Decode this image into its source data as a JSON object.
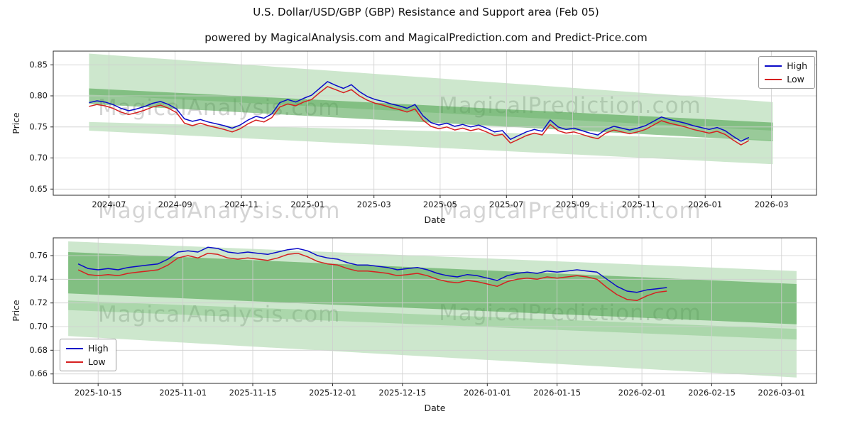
{
  "title": "U.S. Dollar/USD/GBP (GBP) Resistance and Support area (Feb 05)",
  "subtitle": "powered by MagicalAnalysis.com and MagicalPrediction.com and Predict-Price.com",
  "watermarks": {
    "analysis": "MagicalAnalysis.com",
    "prediction": "MagicalPrediction.com"
  },
  "legend": {
    "high": "High",
    "low": "Low"
  },
  "colors": {
    "high": "#0a0ac8",
    "low": "#d62020",
    "band_light": "rgba(99,180,99,0.32)",
    "band_dark": "rgba(70,158,70,0.55)",
    "grid": "#cfcfcf",
    "spine": "#2b2b2b"
  },
  "chart_data": [
    {
      "type": "line",
      "title": "U.S. Dollar/USD/GBP (GBP) Resistance and Support area (Feb 05)",
      "xlabel": "Date",
      "ylabel": "Price",
      "xlim": [
        2024.36,
        2026.28
      ],
      "ylim": [
        0.64,
        0.872
      ],
      "grid": true,
      "legend_position": "upper right",
      "xticks": [
        {
          "v": 2024.5,
          "label": "2024-07"
        },
        {
          "v": 2024.6667,
          "label": "2024-09"
        },
        {
          "v": 2024.8333,
          "label": "2024-11"
        },
        {
          "v": 2025.0,
          "label": "2025-01"
        },
        {
          "v": 2025.1667,
          "label": "2025-03"
        },
        {
          "v": 2025.3333,
          "label": "2025-05"
        },
        {
          "v": 2025.5,
          "label": "2025-07"
        },
        {
          "v": 2025.6667,
          "label": "2025-09"
        },
        {
          "v": 2025.8333,
          "label": "2025-11"
        },
        {
          "v": 2026.0,
          "label": "2026-01"
        },
        {
          "v": 2026.1667,
          "label": "2026-03"
        }
      ],
      "yticks": [
        {
          "v": 0.65,
          "label": "0.65"
        },
        {
          "v": 0.7,
          "label": "0.70"
        },
        {
          "v": 0.75,
          "label": "0.75"
        },
        {
          "v": 0.8,
          "label": "0.80"
        },
        {
          "v": 0.85,
          "label": "0.85"
        }
      ],
      "x_start": 2024.45,
      "x_step": 0.02,
      "series": [
        {
          "name": "High",
          "color": "#0a0ac8",
          "y": [
            0.789,
            0.792,
            0.79,
            0.786,
            0.78,
            0.776,
            0.779,
            0.783,
            0.788,
            0.791,
            0.786,
            0.779,
            0.763,
            0.759,
            0.762,
            0.758,
            0.755,
            0.752,
            0.748,
            0.753,
            0.761,
            0.767,
            0.764,
            0.771,
            0.789,
            0.794,
            0.79,
            0.796,
            0.801,
            0.812,
            0.823,
            0.817,
            0.812,
            0.818,
            0.807,
            0.799,
            0.794,
            0.791,
            0.787,
            0.784,
            0.78,
            0.786,
            0.768,
            0.757,
            0.753,
            0.756,
            0.751,
            0.754,
            0.75,
            0.753,
            0.748,
            0.742,
            0.744,
            0.73,
            0.736,
            0.742,
            0.746,
            0.743,
            0.761,
            0.75,
            0.746,
            0.748,
            0.744,
            0.74,
            0.737,
            0.746,
            0.751,
            0.748,
            0.745,
            0.748,
            0.752,
            0.759,
            0.766,
            0.762,
            0.759,
            0.756,
            0.752,
            0.749,
            0.746,
            0.749,
            0.744,
            0.735,
            0.727,
            0.733
          ]
        },
        {
          "name": "Low",
          "color": "#d62020",
          "y": [
            0.783,
            0.786,
            0.784,
            0.78,
            0.774,
            0.77,
            0.773,
            0.777,
            0.782,
            0.785,
            0.78,
            0.773,
            0.756,
            0.752,
            0.756,
            0.752,
            0.749,
            0.746,
            0.742,
            0.747,
            0.755,
            0.761,
            0.758,
            0.765,
            0.782,
            0.787,
            0.784,
            0.79,
            0.794,
            0.805,
            0.815,
            0.81,
            0.805,
            0.81,
            0.8,
            0.793,
            0.788,
            0.785,
            0.781,
            0.778,
            0.774,
            0.779,
            0.761,
            0.751,
            0.747,
            0.75,
            0.745,
            0.748,
            0.744,
            0.747,
            0.742,
            0.736,
            0.738,
            0.724,
            0.73,
            0.736,
            0.74,
            0.737,
            0.754,
            0.744,
            0.74,
            0.742,
            0.738,
            0.734,
            0.731,
            0.74,
            0.745,
            0.742,
            0.739,
            0.742,
            0.746,
            0.753,
            0.76,
            0.756,
            0.753,
            0.75,
            0.746,
            0.743,
            0.74,
            0.743,
            0.738,
            0.729,
            0.721,
            0.728
          ]
        }
      ],
      "bands": [
        {
          "x": [
            2024.45,
            2026.17
          ],
          "top": [
            0.868,
            0.79
          ],
          "bottom": [
            0.802,
            0.744
          ],
          "shade": "light"
        },
        {
          "x": [
            2024.45,
            2026.17
          ],
          "top": [
            0.812,
            0.757
          ],
          "bottom": [
            0.787,
            0.727
          ],
          "shade": "dark"
        },
        {
          "x": [
            2024.45,
            2026.17
          ],
          "top": [
            0.758,
            0.729
          ],
          "bottom": [
            0.744,
            0.69
          ],
          "shade": "light"
        }
      ]
    },
    {
      "type": "line",
      "title": "",
      "xlabel": "Date",
      "ylabel": "Price",
      "xlim": [
        -9,
        144
      ],
      "ylim": [
        0.652,
        0.775
      ],
      "grid": true,
      "legend_position": "lower left",
      "xticks": [
        {
          "v": 0,
          "label": "2025-10-15"
        },
        {
          "v": 17,
          "label": "2025-11-01"
        },
        {
          "v": 31,
          "label": "2025-11-15"
        },
        {
          "v": 47,
          "label": "2025-12-01"
        },
        {
          "v": 61,
          "label": "2025-12-15"
        },
        {
          "v": 78,
          "label": "2026-01-01"
        },
        {
          "v": 92,
          "label": "2026-01-15"
        },
        {
          "v": 109,
          "label": "2026-02-01"
        },
        {
          "v": 123,
          "label": "2026-02-15"
        },
        {
          "v": 137,
          "label": "2026-03-01"
        }
      ],
      "yticks": [
        {
          "v": 0.66,
          "label": "0.66"
        },
        {
          "v": 0.68,
          "label": "0.68"
        },
        {
          "v": 0.7,
          "label": "0.70"
        },
        {
          "v": 0.72,
          "label": "0.72"
        },
        {
          "v": 0.74,
          "label": "0.74"
        },
        {
          "v": 0.76,
          "label": "0.76"
        }
      ],
      "x_start": -4,
      "x_step": 2,
      "series": [
        {
          "name": "High",
          "color": "#0a0ac8",
          "y": [
            0.753,
            0.749,
            0.748,
            0.749,
            0.748,
            0.75,
            0.751,
            0.752,
            0.753,
            0.757,
            0.763,
            0.764,
            0.763,
            0.767,
            0.766,
            0.763,
            0.762,
            0.763,
            0.762,
            0.761,
            0.763,
            0.765,
            0.766,
            0.764,
            0.76,
            0.758,
            0.757,
            0.754,
            0.752,
            0.752,
            0.751,
            0.75,
            0.748,
            0.749,
            0.75,
            0.748,
            0.745,
            0.743,
            0.742,
            0.744,
            0.743,
            0.741,
            0.739,
            0.743,
            0.745,
            0.746,
            0.745,
            0.747,
            0.746,
            0.747,
            0.748,
            0.747,
            0.746,
            0.74,
            0.734,
            0.73,
            0.729,
            0.731,
            0.732,
            0.733
          ]
        },
        {
          "name": "Low",
          "color": "#d62020",
          "y": [
            0.748,
            0.744,
            0.743,
            0.744,
            0.743,
            0.745,
            0.746,
            0.747,
            0.748,
            0.752,
            0.758,
            0.76,
            0.758,
            0.762,
            0.761,
            0.758,
            0.757,
            0.758,
            0.757,
            0.756,
            0.758,
            0.761,
            0.762,
            0.759,
            0.755,
            0.753,
            0.752,
            0.749,
            0.747,
            0.747,
            0.746,
            0.745,
            0.743,
            0.744,
            0.745,
            0.743,
            0.74,
            0.738,
            0.737,
            0.739,
            0.738,
            0.736,
            0.734,
            0.738,
            0.74,
            0.741,
            0.74,
            0.742,
            0.741,
            0.742,
            0.743,
            0.742,
            0.74,
            0.733,
            0.727,
            0.723,
            0.722,
            0.726,
            0.729,
            0.73
          ]
        }
      ],
      "bands": [
        {
          "x": [
            -6,
            140
          ],
          "top": [
            0.772,
            0.747
          ],
          "bottom": [
            0.714,
            0.689
          ],
          "shade": "light"
        },
        {
          "x": [
            -6,
            140
          ],
          "top": [
            0.763,
            0.736
          ],
          "bottom": [
            0.728,
            0.702
          ],
          "shade": "dark"
        },
        {
          "x": [
            -6,
            140
          ],
          "top": [
            0.722,
            0.698
          ],
          "bottom": [
            0.692,
            0.657
          ],
          "shade": "light"
        }
      ]
    }
  ]
}
